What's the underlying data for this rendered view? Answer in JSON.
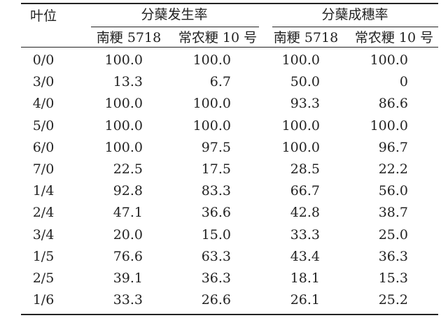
{
  "table": {
    "header": {
      "leaf_position": "叶位",
      "tiller_rate": "分蘖发生率",
      "panicle_rate": "分蘖成穗率",
      "variety_a": "南粳 5718",
      "variety_b": "常农粳 10 号"
    },
    "rows": [
      {
        "pos": "0/0",
        "t_a": "100.0",
        "t_b": "100.0",
        "p_a": "100.0",
        "p_b": "100.0"
      },
      {
        "pos": "3/0",
        "t_a": "13.3",
        "t_b": "6.7",
        "p_a": "50.0",
        "p_b": "0"
      },
      {
        "pos": "4/0",
        "t_a": "100.0",
        "t_b": "100.0",
        "p_a": "93.3",
        "p_b": "86.6"
      },
      {
        "pos": "5/0",
        "t_a": "100.0",
        "t_b": "100.0",
        "p_a": "100.0",
        "p_b": "100.0"
      },
      {
        "pos": "6/0",
        "t_a": "100.0",
        "t_b": "97.5",
        "p_a": "100.0",
        "p_b": "96.7"
      },
      {
        "pos": "7/0",
        "t_a": "22.5",
        "t_b": "17.5",
        "p_a": "28.5",
        "p_b": "22.2"
      },
      {
        "pos": "1/4",
        "t_a": "92.8",
        "t_b": "83.3",
        "p_a": "66.7",
        "p_b": "56.0"
      },
      {
        "pos": "2/4",
        "t_a": "47.1",
        "t_b": "36.6",
        "p_a": "42.8",
        "p_b": "38.7"
      },
      {
        "pos": "3/4",
        "t_a": "20.0",
        "t_b": "15.0",
        "p_a": "33.3",
        "p_b": "25.0"
      },
      {
        "pos": "1/5",
        "t_a": "76.6",
        "t_b": "63.3",
        "p_a": "43.4",
        "p_b": "36.3"
      },
      {
        "pos": "2/5",
        "t_a": "39.1",
        "t_b": "36.3",
        "p_a": "18.1",
        "p_b": "15.3"
      },
      {
        "pos": "1/6",
        "t_a": "33.3",
        "t_b": "26.6",
        "p_a": "26.1",
        "p_b": "25.2"
      }
    ]
  }
}
